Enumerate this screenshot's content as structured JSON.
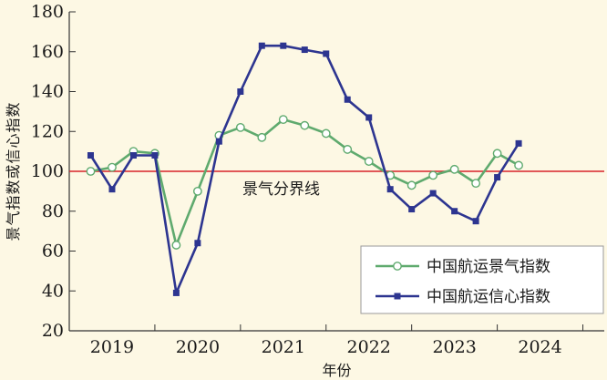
{
  "chart_data": {
    "type": "line",
    "xlabel": "年份",
    "ylabel": "景气指数或信心指数",
    "ylim": [
      20,
      180
    ],
    "yticks": [
      20,
      40,
      60,
      80,
      100,
      120,
      140,
      160,
      180
    ],
    "xlim": [
      2018.5,
      2024.75
    ],
    "xtick_labels": [
      "2019",
      "2020",
      "2021",
      "2022",
      "2023",
      "2024"
    ],
    "grid": false,
    "legend": "bottom-right",
    "reference_line": {
      "value": 100,
      "label": "景气分界线",
      "color": "#D8222A"
    },
    "series": [
      {
        "name": "中国航运景气指数",
        "color": "#5FAA6E",
        "marker": "circle-open",
        "x": [
          2018.75,
          2019.0,
          2019.25,
          2019.5,
          2019.75,
          2020.0,
          2020.25,
          2020.5,
          2020.75,
          2021.0,
          2021.25,
          2021.5,
          2021.75,
          2022.0,
          2022.25,
          2022.5,
          2022.75,
          2023.0,
          2023.25,
          2023.5,
          2023.75
        ],
        "values": [
          100,
          102,
          110,
          109,
          63,
          90,
          118,
          122,
          117,
          126,
          123,
          119,
          111,
          105,
          98,
          93,
          98,
          101,
          94,
          109,
          103
        ]
      },
      {
        "name": "中国航运信心指数",
        "color": "#2D3590",
        "marker": "square",
        "x": [
          2018.75,
          2019.0,
          2019.25,
          2019.5,
          2019.75,
          2020.0,
          2020.25,
          2020.5,
          2020.75,
          2021.0,
          2021.25,
          2021.5,
          2021.75,
          2022.0,
          2022.25,
          2022.5,
          2022.75,
          2023.0,
          2023.25,
          2023.5,
          2023.75
        ],
        "values": [
          108,
          91,
          108,
          108,
          39,
          64,
          115,
          140,
          163,
          163,
          161,
          159,
          136,
          127,
          91,
          81,
          89,
          80,
          75,
          97,
          114
        ]
      }
    ]
  }
}
